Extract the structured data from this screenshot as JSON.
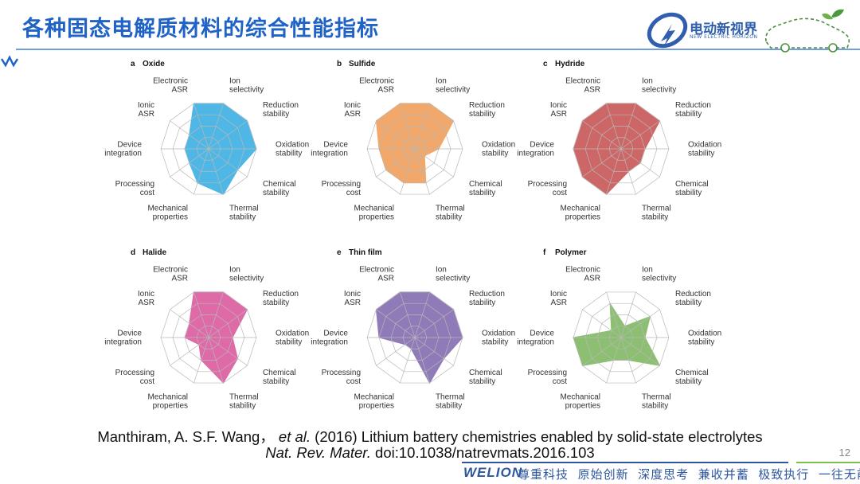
{
  "header": {
    "title": "各种固态电解质材料的综合性能指标",
    "brand_name": "电动新视界",
    "brand_sub": "NEW ELECTRIC HORIZON"
  },
  "citation": {
    "line1_authors": "Manthiram, A. S.F. Wang，",
    "line1_etal": "et al.",
    "line1_rest": "(2016) Lithium battery chemistries enabled by solid-state electrolytes",
    "line2_journal": "Nat. Rev. Mater.",
    "line2_doi": "doi:10.1038/natrevmats.2016.103"
  },
  "page_number": "12",
  "footer": {
    "logo_text": "WELION",
    "slogans": [
      "尊重科技",
      "原始创新",
      "深度思考",
      "兼收并蓄",
      "极致执行",
      "一往无前"
    ]
  },
  "colors": {
    "title": "#1f63c6",
    "oxide": "#4fb7e6",
    "sulfide": "#f2a86a",
    "hydride": "#cd6666",
    "halide": "#de6aa8",
    "thin_film": "#8f7bb7",
    "polymer": "#8dbf73",
    "grid": "#b8b8b8"
  },
  "chart_data": [
    {
      "type": "radar",
      "letter": "a",
      "title": "Oxide",
      "color_key": "oxide",
      "axes": [
        "Ion selectivity",
        "Reduction stability",
        "Oxidation stability",
        "Chemical stability",
        "Thermal stability",
        "Mechanical properties",
        "Processing cost",
        "Device integration",
        "Ionic ASR",
        "Electronic ASR"
      ],
      "values": [
        4,
        4,
        4,
        3,
        4,
        3,
        2,
        2,
        2,
        4
      ],
      "max": 4
    },
    {
      "type": "radar",
      "letter": "b",
      "title": "Sulfide",
      "color_key": "sulfide",
      "axes": [
        "Ion selectivity",
        "Reduction stability",
        "Oxidation stability",
        "Chemical stability",
        "Thermal stability",
        "Mechanical properties",
        "Processing cost",
        "Device integration",
        "Ionic ASR",
        "Electronic ASR"
      ],
      "values": [
        4,
        4,
        2,
        1,
        3,
        3,
        3,
        3,
        4,
        4
      ],
      "max": 4
    },
    {
      "type": "radar",
      "letter": "c",
      "title": "Hydride",
      "color_key": "hydride",
      "axes": [
        "Ion selectivity",
        "Reduction stability",
        "Oxidation stability",
        "Chemical stability",
        "Thermal stability",
        "Mechanical properties",
        "Processing cost",
        "Device integration",
        "Ionic ASR",
        "Electronic ASR"
      ],
      "values": [
        4,
        4,
        2,
        2,
        2,
        4,
        4,
        4,
        4,
        4
      ],
      "max": 4
    },
    {
      "type": "radar",
      "letter": "d",
      "title": "Halide",
      "color_key": "halide",
      "axes": [
        "Ion selectivity",
        "Reduction stability",
        "Oxidation stability",
        "Chemical stability",
        "Thermal stability",
        "Mechanical properties",
        "Processing cost",
        "Device integration",
        "Ionic ASR",
        "Electronic ASR"
      ],
      "values": [
        4,
        4,
        2,
        3,
        4,
        2,
        1,
        2,
        2,
        4
      ],
      "max": 4
    },
    {
      "type": "radar",
      "letter": "e",
      "title": "Thin film",
      "color_key": "thin_film",
      "axes": [
        "Ion selectivity",
        "Reduction stability",
        "Oxidation stability",
        "Chemical stability",
        "Thermal stability",
        "Mechanical properties",
        "Processing cost",
        "Device integration",
        "Ionic ASR",
        "Electronic ASR"
      ],
      "values": [
        4,
        4,
        4,
        3,
        4,
        1,
        1,
        3,
        4,
        4
      ],
      "max": 4
    },
    {
      "type": "radar",
      "letter": "f",
      "title": "Polymer",
      "color_key": "polymer",
      "axes": [
        "Ion selectivity",
        "Reduction stability",
        "Oxidation stability",
        "Chemical stability",
        "Thermal stability",
        "Mechanical properties",
        "Processing cost",
        "Device integration",
        "Ionic ASR",
        "Electronic ASR"
      ],
      "values": [
        1,
        3,
        2,
        4,
        2,
        2,
        4,
        4,
        1,
        3
      ],
      "max": 4
    }
  ]
}
